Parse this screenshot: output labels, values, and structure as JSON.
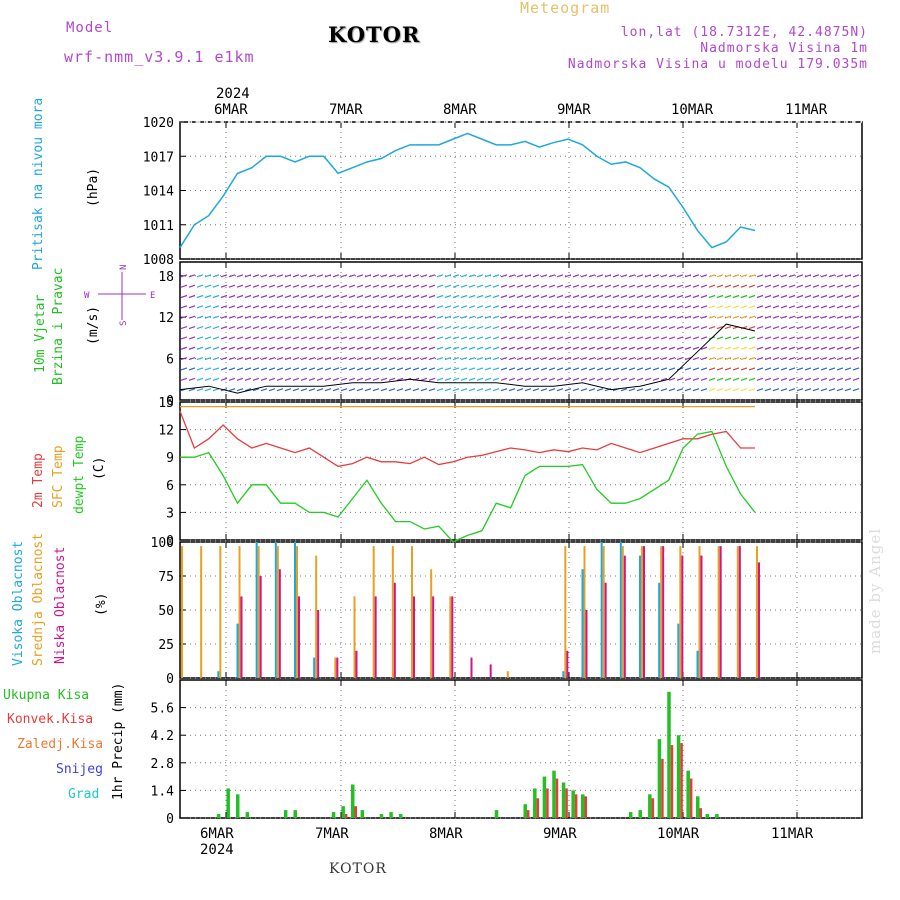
{
  "header": {
    "model_label": "Model",
    "model_name": "wrf-nmm_v3.9.1 e1km",
    "title": "KOTOR",
    "subtitle": "Meteogram",
    "lonlat": "lon,lat (18.7312E, 42.4875N)",
    "altitude": "Nadmorska Visina 1m",
    "model_altitude": "Nadmorska Visina u modelu 179.035m"
  },
  "footer": {
    "location": "KOTOR",
    "watermark": "made by Angel"
  },
  "colors": {
    "pressure": "#1ea8e0",
    "wind_title": "#22c022",
    "wind_purple": "#9a30d0",
    "t2m": "#e83c3c",
    "sfc": "#e8a020",
    "dew": "#22cc22",
    "cloud_high": "#1ea8e0",
    "cloud_mid": "#e8a020",
    "cloud_low": "#d0148c",
    "precip_total": "#22c022",
    "precip_conv": "#e83c3c",
    "precip_frz": "#f07830",
    "snow": "#4040e0",
    "grad": "#20c8c8"
  },
  "chart_data": [
    {
      "type": "line",
      "panel": "pressure",
      "title": "Pritisak na nivou mora",
      "ylabel": "(hPa)",
      "ylim": [
        1008,
        1020
      ],
      "yticks": [
        1008,
        1011,
        1014,
        1017,
        1020
      ],
      "x_axis_top": {
        "year": "2024",
        "labels": [
          "6MAR",
          "7MAR",
          "8MAR",
          "9MAR",
          "10MAR",
          "11MAR"
        ]
      },
      "x_hours": [
        0,
        3,
        6,
        9,
        12,
        15,
        18,
        21,
        24,
        27,
        30,
        33,
        36,
        39,
        42,
        45,
        48,
        51,
        54,
        57,
        60,
        63,
        66,
        69,
        72,
        75,
        78,
        81,
        84,
        87,
        90,
        93,
        96,
        99,
        102,
        105,
        108,
        111,
        114,
        117,
        120
      ],
      "series": [
        {
          "name": "Pritisak na nivou mora",
          "values": [
            1009,
            1011,
            1011.8,
            1013.5,
            1015.5,
            1016,
            1017,
            1017,
            1016.5,
            1017,
            1017,
            1015.5,
            1016,
            1016.5,
            1016.8,
            1017.5,
            1018,
            1018,
            1018,
            1018.5,
            1019,
            1018.5,
            1018,
            1018,
            1018.3,
            1017.8,
            1018.2,
            1018.5,
            1018,
            1017,
            1016.3,
            1016.5,
            1016,
            1015,
            1014.3,
            1012.5,
            1010.5,
            1009,
            1009.5,
            1010.8,
            1010.5
          ]
        }
      ],
      "grid": true
    },
    {
      "type": "scatter",
      "panel": "wind",
      "title": "10m Vjetar Brzina i Pravac",
      "ylabel": "(m/s)",
      "ylim": [
        0,
        20
      ],
      "yticks": [
        0,
        6,
        12,
        18
      ],
      "legend_compass": "N S W E",
      "x_hours": [
        0,
        6,
        12,
        18,
        24,
        30,
        36,
        42,
        48,
        54,
        60,
        66,
        72,
        78,
        84,
        90,
        96,
        102,
        108,
        114,
        120
      ],
      "series": [
        {
          "name": "10m Vjetar",
          "values": [
            1.5,
            2,
            1,
            2,
            2,
            2,
            2.5,
            2.5,
            3,
            2.5,
            2.5,
            2.5,
            2,
            2,
            2.5,
            1.5,
            2,
            3,
            7,
            11,
            10
          ]
        }
      ],
      "grid": true
    },
    {
      "type": "line",
      "panel": "temperature",
      "ylabel": "(C)",
      "ylim": [
        0,
        15
      ],
      "yticks": [
        0,
        3,
        6,
        9,
        12,
        15
      ],
      "x_hours": [
        0,
        3,
        6,
        9,
        12,
        15,
        18,
        21,
        24,
        27,
        30,
        33,
        36,
        39,
        42,
        45,
        48,
        51,
        54,
        57,
        60,
        63,
        66,
        69,
        72,
        75,
        78,
        81,
        84,
        87,
        90,
        93,
        96,
        99,
        102,
        105,
        108,
        111,
        114,
        117,
        120
      ],
      "series": [
        {
          "name": "2m Temp",
          "values": [
            14,
            10,
            11,
            12.5,
            11,
            10,
            10.5,
            10,
            9.5,
            10,
            9,
            8,
            8.3,
            9,
            8.5,
            8.5,
            8.3,
            9,
            8.2,
            8.5,
            9,
            9.2,
            9.6,
            10,
            9.8,
            9.5,
            9.8,
            9.6,
            10,
            9.8,
            10.5,
            10,
            9.5,
            10,
            10.5,
            11,
            11,
            11.5,
            11.8,
            10,
            10
          ]
        },
        {
          "name": "SFC Temp",
          "values": [
            14.5,
            14.5,
            14.5,
            14.5,
            14.5,
            14.5,
            14.5,
            14.5,
            14.5,
            14.5,
            14.5,
            14.5,
            14.5,
            14.5,
            14.5,
            14.5,
            14.5,
            14.5,
            14.5,
            14.5,
            14.5,
            14.5,
            14.5,
            14.5,
            14.5,
            14.5,
            14.5,
            14.5,
            14.5,
            14.5,
            14.5,
            14.5,
            14.5,
            14.5,
            14.5,
            14.5,
            14.5,
            14.5,
            14.5,
            14.5,
            14.5
          ]
        },
        {
          "name": "dewpt Temp",
          "values": [
            9,
            9,
            9.5,
            7,
            4,
            6,
            6,
            4,
            4,
            3,
            3,
            2.5,
            4.5,
            6.5,
            4,
            2,
            2,
            1.2,
            1.5,
            -0.2,
            0.5,
            1,
            4,
            3.5,
            7,
            8,
            8,
            8,
            8.2,
            5.5,
            4,
            4,
            4.5,
            5.5,
            6.5,
            10,
            11.5,
            11.8,
            8,
            5,
            3
          ]
        }
      ],
      "grid": true
    },
    {
      "type": "bar",
      "panel": "cloud",
      "ylabel": "(%)",
      "ylim": [
        0,
        100
      ],
      "yticks": [
        0,
        25,
        50,
        75,
        100
      ],
      "x_hours": [
        0,
        4,
        8,
        12,
        16,
        20,
        24,
        28,
        32,
        36,
        40,
        44,
        48,
        52,
        56,
        60,
        64,
        68,
        72,
        76,
        80,
        84,
        88,
        92,
        96,
        100,
        104,
        108,
        112,
        116,
        120
      ],
      "series": [
        {
          "name": "Visoka Oblacnost",
          "values": [
            0,
            0,
            5,
            40,
            100,
            100,
            100,
            15,
            0,
            0,
            0,
            0,
            0,
            0,
            0,
            0,
            0,
            0,
            0,
            0,
            5,
            80,
            100,
            100,
            90,
            70,
            40,
            20,
            0,
            0,
            0
          ]
        },
        {
          "name": "Srednja Oblacnost",
          "values": [
            97,
            97,
            97,
            97,
            97,
            97,
            97,
            90,
            15,
            60,
            97,
            97,
            97,
            80,
            60,
            0,
            0,
            5,
            0,
            0,
            97,
            97,
            97,
            97,
            97,
            97,
            97,
            97,
            97,
            97,
            97
          ]
        },
        {
          "name": "Niska Oblacnost",
          "values": [
            0,
            0,
            0,
            60,
            75,
            80,
            60,
            50,
            15,
            20,
            60,
            70,
            60,
            60,
            60,
            15,
            10,
            0,
            0,
            0,
            20,
            50,
            70,
            90,
            97,
            97,
            90,
            90,
            97,
            97,
            85
          ]
        }
      ],
      "grid": true
    },
    {
      "type": "bar",
      "panel": "precip",
      "ylabel": "1hr Precip (mm)",
      "ylim": [
        0,
        7
      ],
      "yticks": [
        0,
        1.4,
        2.8,
        4.2,
        5.6
      ],
      "x_axis_bottom": {
        "year": "2024",
        "labels": [
          "6MAR",
          "7MAR",
          "8MAR",
          "9MAR",
          "10MAR",
          "11MAR"
        ]
      },
      "x_hours": [
        0,
        2,
        4,
        6,
        8,
        10,
        12,
        14,
        16,
        18,
        20,
        22,
        24,
        26,
        28,
        30,
        32,
        34,
        36,
        38,
        40,
        42,
        44,
        46,
        48,
        50,
        52,
        54,
        56,
        58,
        60,
        62,
        64,
        66,
        68,
        70,
        72,
        74,
        76,
        78,
        80,
        82,
        84,
        86,
        88,
        90,
        92,
        94,
        96,
        98,
        100,
        102,
        104,
        106,
        108,
        110,
        112,
        114,
        116,
        118,
        120
      ],
      "series": [
        {
          "name": "Ukupna Kisa",
          "values": [
            0,
            0,
            0,
            0,
            0.2,
            1.5,
            1.2,
            0.3,
            0,
            0,
            0,
            0.4,
            0.4,
            0,
            0,
            0,
            0.3,
            0.6,
            1.7,
            0.4,
            0,
            0.2,
            0.3,
            0.2,
            0,
            0,
            0,
            0,
            0,
            0,
            0,
            0,
            0,
            0.4,
            0,
            0,
            0.7,
            1.5,
            2.1,
            2.4,
            1.8,
            1.4,
            1.2,
            0,
            0,
            0,
            0,
            0.3,
            0.4,
            1.2,
            4,
            6.4,
            4.2,
            2.4,
            1.1,
            0.2,
            0.2,
            0,
            0,
            0,
            0
          ]
        },
        {
          "name": "Konvek.Kisa",
          "values": [
            0,
            0,
            0,
            0,
            0,
            0,
            0,
            0,
            0,
            0,
            0,
            0,
            0,
            0,
            0,
            0,
            0,
            0.2,
            0.6,
            0,
            0,
            0,
            0,
            0,
            0,
            0,
            0,
            0,
            0,
            0,
            0,
            0,
            0,
            0,
            0,
            0,
            0.4,
            1,
            1.5,
            2,
            1.5,
            1.2,
            1.1,
            0,
            0,
            0,
            0,
            0,
            0,
            1,
            3,
            3.7,
            3.8,
            2,
            0.5,
            0,
            0,
            0,
            0,
            0,
            0
          ]
        },
        {
          "name": "Zaledj.Kisa",
          "values": []
        },
        {
          "name": "Snijeg",
          "values": []
        },
        {
          "name": "Grad",
          "values": []
        }
      ],
      "grid": true
    }
  ],
  "labels": {
    "pressure_title": "Pritisak na nivou mora",
    "pressure_unit": "(hPa)",
    "wind_title_1": "10m Vjetar",
    "wind_title_2": "Brzina i Pravac",
    "wind_unit": "(m/s)",
    "wind_compass_line1": "N",
    "wind_compass_w": "W",
    "wind_compass_e": "E",
    "wind_compass_line2": "S",
    "temp_2m": "2m Temp",
    "temp_sfc": "SFC Temp",
    "temp_dew": "dewpt Temp",
    "temp_unit": "(C)",
    "cloud_high": "Visoka Oblacnost",
    "cloud_mid": "Srednja Oblacnost",
    "cloud_low": "Niska Oblacnost",
    "cloud_unit": "(%)",
    "precip_total": "Ukupna Kisa",
    "precip_conv": "Konvek.Kisa",
    "precip_frz": "Zaledj.Kisa",
    "precip_snow": "Snijeg",
    "precip_grad": "Grad",
    "precip_unit": "1hr Precip (mm)"
  }
}
